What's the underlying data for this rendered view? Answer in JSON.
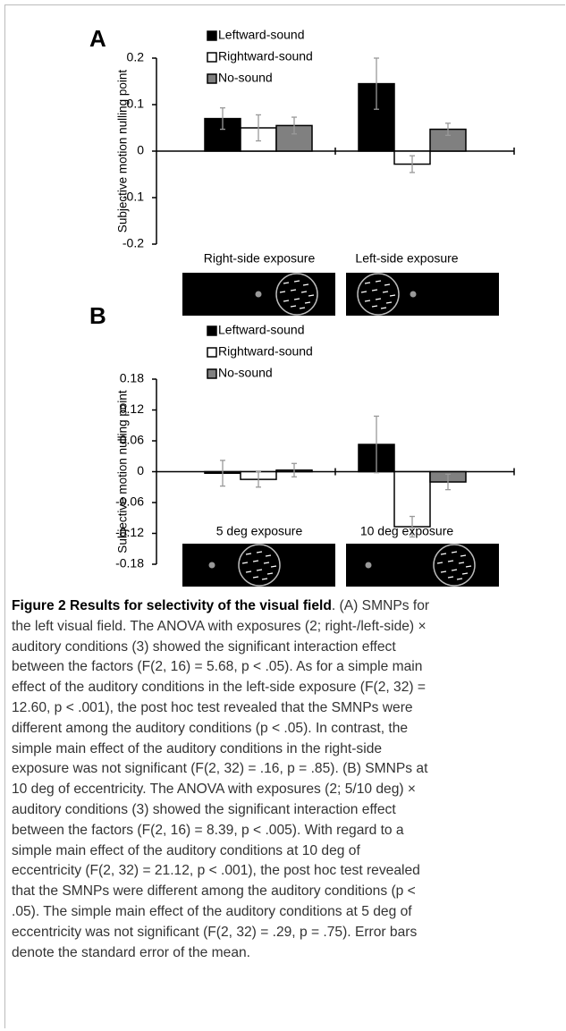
{
  "chart_data": [
    {
      "type": "bar",
      "panel_label": "A",
      "y_label": "Subjective motion nulling point",
      "categories": [
        "Right-side exposure",
        "Left-side exposure"
      ],
      "series": [
        {
          "name": "Leftward-sound",
          "color": "#000000",
          "values": [
            0.07,
            0.145
          ],
          "errors": [
            0.023,
            0.055
          ]
        },
        {
          "name": "Rightward-sound",
          "color": "#ffffff",
          "values": [
            0.05,
            -0.028
          ],
          "errors": [
            0.028,
            0.018
          ]
        },
        {
          "name": "No-sound",
          "color": "#808080",
          "values": [
            0.055,
            0.047
          ],
          "errors": [
            0.018,
            0.013
          ]
        }
      ],
      "ylim": [
        -0.2,
        0.2
      ],
      "yticks": [
        0.2,
        0.1,
        0,
        -0.1,
        -0.2
      ]
    },
    {
      "type": "bar",
      "panel_label": "B",
      "y_label": "Subjective motion nulling point",
      "categories": [
        "5 deg exposure",
        "10 deg exposure"
      ],
      "series": [
        {
          "name": "Leftward-sound",
          "color": "#000000",
          "values": [
            -0.003,
            0.053
          ],
          "errors": [
            0.025,
            0.055
          ]
        },
        {
          "name": "Rightward-sound",
          "color": "#ffffff",
          "values": [
            -0.015,
            -0.107
          ],
          "errors": [
            0.015,
            0.02
          ]
        },
        {
          "name": "No-sound",
          "color": "#808080",
          "values": [
            0.003,
            -0.02
          ],
          "errors": [
            0.013,
            0.015
          ]
        }
      ],
      "ylim": [
        -0.18,
        0.18
      ],
      "yticks": [
        0.18,
        0.12,
        0.06,
        0,
        -0.06,
        -0.12,
        -0.18
      ]
    }
  ],
  "caption": {
    "title": "Figure 2 Results for selectivity of the visual field",
    "lines": [
      ". (A) SMNPs for",
      "the left visual field. The ANOVA with exposures (2; right-/left-side) ×",
      "auditory conditions (3) showed the significant interaction effect",
      "between the factors (F(2, 16) = 5.68, p < .05). As for a simple main",
      "effect of the auditory conditions in the left-side exposure (F(2, 32) =",
      "12.60, p < .001), the post hoc test revealed that the SMNPs were",
      "different among the auditory conditions (p < .05). In contrast, the",
      "simple main effect of the auditory conditions in the right-side",
      "exposure was not significant (F(2, 32) = .16, p = .85). (B) SMNPs at",
      "10 deg of eccentricity. The ANOVA with exposures (2; 5/10 deg) ×",
      "auditory conditions (3) showed the significant interaction effect",
      "between the factors (F(2, 16) = 8.39, p < .005). With regard to a",
      "simple main effect of the auditory conditions at 10 deg of",
      "eccentricity (F(2, 32) = 21.12, p < .001), the post hoc test revealed",
      "that the SMNPs were different among the auditory conditions (p <",
      ".05). The simple main effect of the auditory conditions at 5 deg of",
      "eccentricity was not significant (F(2, 32) = .29, p = .75). Error bars",
      "denote the standard error of the mean."
    ]
  }
}
